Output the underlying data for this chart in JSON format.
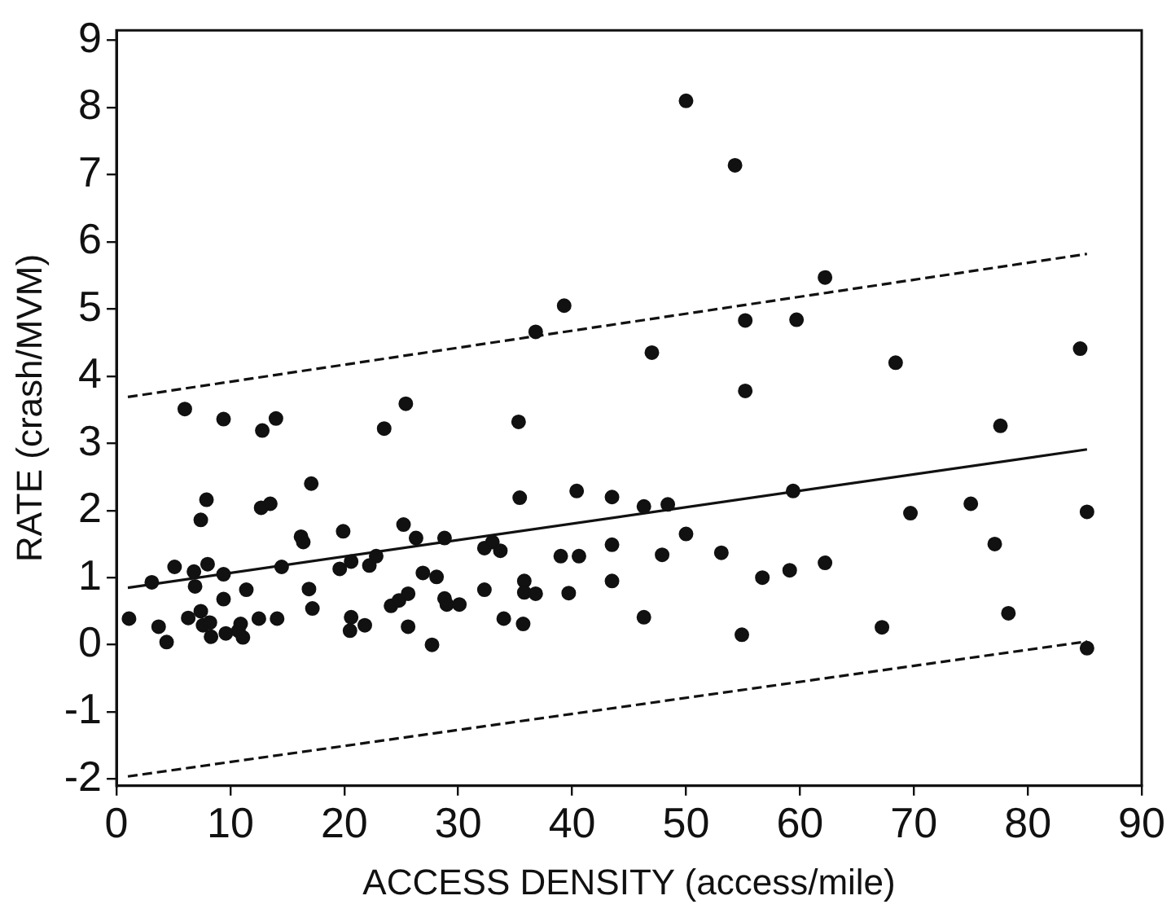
{
  "chart_data": {
    "type": "scatter",
    "xlabel": "ACCESS DENSITY (access/mile)",
    "ylabel": "RATE (crash/MVM)",
    "xlim": [
      0,
      90
    ],
    "xticks": [
      0,
      10,
      20,
      30,
      40,
      50,
      60,
      70,
      80,
      90
    ],
    "ylim": [
      -2.1,
      9.15
    ],
    "yticks": [
      -2,
      -1,
      0,
      1,
      2,
      3,
      4,
      5,
      6,
      7,
      8,
      9
    ],
    "grid": false,
    "legend": false,
    "series": [
      {
        "type": "scatter",
        "color": "#111111",
        "marker": "circle",
        "x": [
          1.1,
          3.1,
          3.7,
          4.4,
          5.1,
          6.0,
          6.3,
          6.8,
          6.9,
          7.4,
          7.4,
          7.9,
          8.0,
          7.6,
          8.3,
          8.2,
          9.4,
          9.4,
          9.4,
          9.6,
          10.7,
          11.1,
          10.9,
          11.4,
          12.5,
          12.8,
          12.7,
          13.5,
          14.0,
          14.1,
          14.5,
          16.2,
          16.4,
          17.1,
          16.9,
          17.2,
          19.6,
          19.9,
          20.6,
          20.6,
          20.5,
          21.8,
          22.2,
          22.8,
          23.5,
          24.1,
          24.8,
          25.2,
          25.4,
          25.6,
          25.6,
          26.3,
          26.9,
          28.1,
          27.7,
          28.8,
          28.8,
          29.0,
          30.1,
          32.3,
          32.3,
          33.0,
          33.7,
          34.0,
          35.3,
          35.4,
          35.7,
          35.8,
          35.8,
          36.8,
          39.7,
          39.0,
          40.6,
          40.4,
          43.5,
          43.5,
          43.5,
          36.8,
          39.3,
          50.0,
          54.3,
          62.2,
          55.2,
          59.7,
          47.0,
          68.4,
          84.6,
          55.2,
          77.6,
          46.3,
          48.4,
          59.4,
          69.7,
          75.0,
          85.2,
          47.9,
          50.0,
          53.1,
          56.7,
          59.1,
          62.2,
          77.1,
          46.3,
          54.9,
          67.2,
          78.3,
          85.2
        ],
        "values": [
          0.39,
          0.93,
          0.27,
          0.04,
          1.16,
          3.51,
          0.4,
          1.09,
          0.87,
          0.5,
          1.86,
          2.16,
          1.2,
          0.29,
          0.12,
          0.33,
          3.36,
          1.05,
          0.68,
          0.17,
          0.21,
          0.11,
          0.31,
          0.82,
          0.39,
          3.19,
          2.04,
          2.1,
          3.37,
          0.39,
          1.16,
          1.61,
          1.53,
          2.4,
          0.83,
          0.54,
          1.13,
          1.69,
          1.24,
          0.41,
          0.21,
          0.29,
          1.18,
          1.32,
          3.22,
          0.58,
          0.66,
          1.79,
          3.59,
          0.76,
          0.27,
          1.59,
          1.07,
          1.01,
          0.0,
          1.59,
          0.69,
          0.6,
          0.6,
          0.82,
          1.44,
          1.53,
          1.4,
          0.39,
          3.32,
          2.19,
          0.31,
          0.95,
          0.78,
          0.76,
          0.77,
          1.32,
          1.32,
          2.29,
          2.2,
          1.49,
          0.95,
          4.66,
          5.05,
          8.1,
          7.14,
          5.47,
          4.83,
          4.84,
          4.35,
          4.2,
          4.41,
          3.78,
          3.26,
          2.06,
          2.09,
          2.29,
          1.96,
          2.1,
          1.98,
          1.34,
          1.65,
          1.37,
          1.0,
          1.11,
          1.22,
          1.5,
          0.41,
          0.15,
          0.26,
          0.47,
          -0.05
        ]
      },
      {
        "type": "line",
        "color": "#111111",
        "line_style": "solid",
        "x": [
          1.0,
          85.2
        ],
        "values": [
          0.85,
          2.91
        ]
      },
      {
        "type": "line",
        "color": "#111111",
        "line_style": "dashed",
        "x": [
          1.0,
          85.2
        ],
        "values": [
          3.69,
          5.82
        ]
      },
      {
        "type": "line",
        "color": "#111111",
        "line_style": "dashed",
        "x": [
          1.0,
          85.2
        ],
        "values": [
          -1.96,
          0.05
        ]
      }
    ]
  }
}
